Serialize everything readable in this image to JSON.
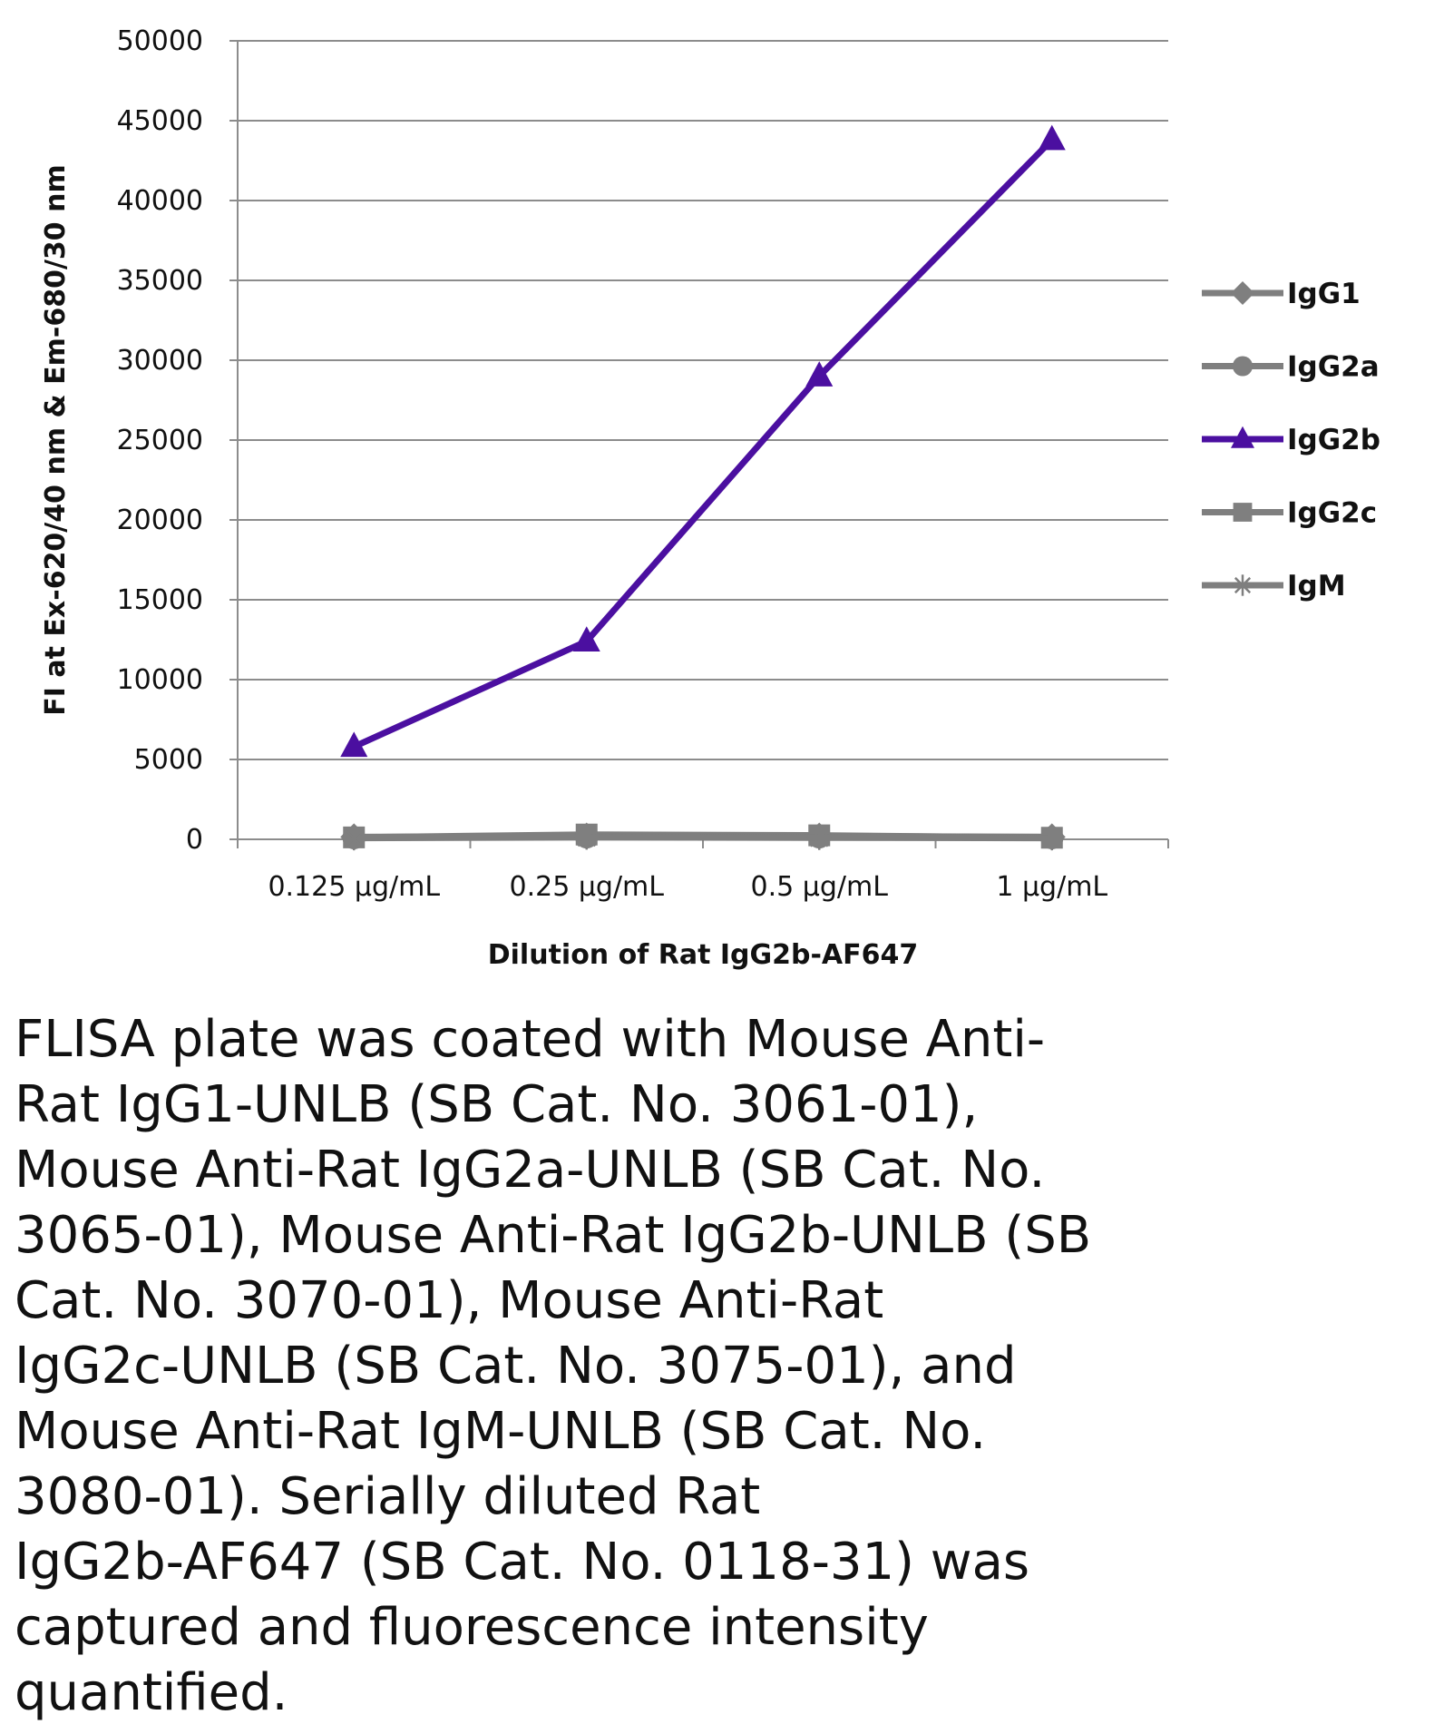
{
  "chart_data": {
    "type": "line",
    "title": "",
    "xlabel": "Dilution of Rat IgG2b-AF647",
    "ylabel": "FI at Ex-620/40 nm & Em-680/30 nm",
    "categories": [
      "0.125 µg/mL",
      "0.25 µg/mL",
      "0.5 µg/mL",
      "1 µg/mL"
    ],
    "ylim": [
      0,
      50000
    ],
    "yticks": [
      0,
      5000,
      10000,
      15000,
      20000,
      25000,
      30000,
      35000,
      40000,
      45000,
      50000
    ],
    "grid": true,
    "legend_position": "right",
    "series": [
      {
        "name": "IgG1",
        "marker": "diamond",
        "color": "#7f7f7f",
        "values": [
          150,
          200,
          200,
          150
        ]
      },
      {
        "name": "IgG2a",
        "marker": "circle",
        "color": "#7f7f7f",
        "values": [
          100,
          150,
          150,
          100
        ]
      },
      {
        "name": "IgG2b",
        "marker": "triangle",
        "color": "#4b0fa0",
        "values": [
          5800,
          12400,
          29000,
          43800
        ]
      },
      {
        "name": "IgG2c",
        "marker": "square",
        "color": "#7f7f7f",
        "values": [
          120,
          300,
          250,
          100
        ]
      },
      {
        "name": "IgM",
        "marker": "star",
        "color": "#7f7f7f",
        "values": [
          80,
          120,
          100,
          80
        ]
      }
    ]
  },
  "caption": {
    "lines": [
      "FLISA plate was coated with Mouse Anti-",
      "Rat IgG1-UNLB (SB Cat. No. 3061-01),",
      "Mouse Anti-Rat IgG2a-UNLB (SB Cat. No.",
      "3065-01), Mouse Anti-Rat IgG2b-UNLB (SB",
      "Cat. No. 3070-01), Mouse Anti-Rat",
      "IgG2c-UNLB (SB Cat. No. 3075-01), and",
      "Mouse Anti-Rat IgM-UNLB (SB Cat. No.",
      "3080-01).  Serially diluted Rat",
      "IgG2b-AF647 (SB Cat. No. 0118-31) was",
      "captured and fluorescence intensity",
      "quantified."
    ]
  }
}
